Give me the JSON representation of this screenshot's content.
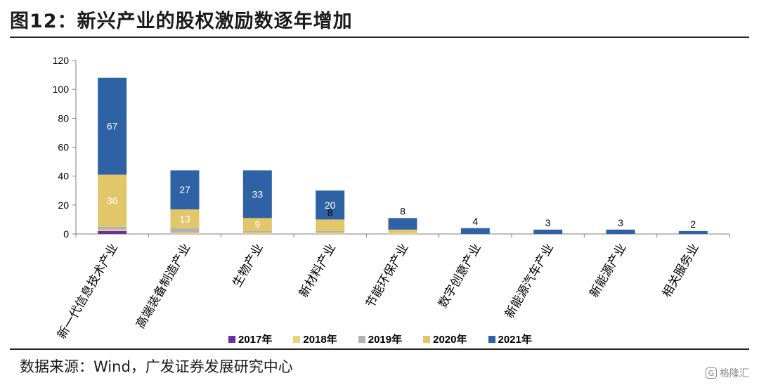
{
  "header": {
    "title": "图12：新兴产业的股权激励数逐年增加"
  },
  "footer": {
    "source": "数据来源：Wind，广发证券发展研究中心",
    "watermark": "格隆汇"
  },
  "colors": {
    "2017": "#6a2fa0",
    "2018": "#e8d27a",
    "2019": "#b2b2b2",
    "2020": "#e2c66a",
    "2021": "#2f62a4"
  },
  "chart_data": {
    "type": "bar",
    "stacked": true,
    "categories": [
      "新一代信息技术产业",
      "高端装备制造产业",
      "生物产业",
      "新材料产业",
      "节能环保产业",
      "数字创意产业",
      "新能源汽车产业",
      "新能源产业",
      "相关服务业"
    ],
    "series": [
      {
        "name": "2017年",
        "values": [
          2,
          0,
          0,
          0,
          0,
          0,
          0,
          0,
          0
        ]
      },
      {
        "name": "2018年",
        "values": [
          1,
          1,
          1,
          1,
          1,
          0,
          0,
          0,
          0
        ]
      },
      {
        "name": "2019年",
        "values": [
          2,
          3,
          1,
          1,
          0,
          0,
          0,
          0,
          0
        ]
      },
      {
        "name": "2020年",
        "values": [
          36,
          13,
          9,
          8,
          2,
          0,
          0,
          0,
          0
        ]
      },
      {
        "name": "2021年",
        "values": [
          67,
          27,
          33,
          20,
          8,
          4,
          3,
          3,
          2
        ]
      }
    ],
    "data_labels": {
      "2020年": [
        "36",
        "13",
        "9",
        "8",
        "",
        "",
        "",
        "",
        ""
      ],
      "2021年": [
        "67",
        "27",
        "33",
        "20",
        "8",
        "4",
        "3",
        "3",
        "2"
      ]
    },
    "yticks": [
      "0",
      "20",
      "40",
      "60",
      "80",
      "100",
      "120"
    ],
    "ylim": [
      0,
      120
    ],
    "legend_position": "bottom"
  }
}
